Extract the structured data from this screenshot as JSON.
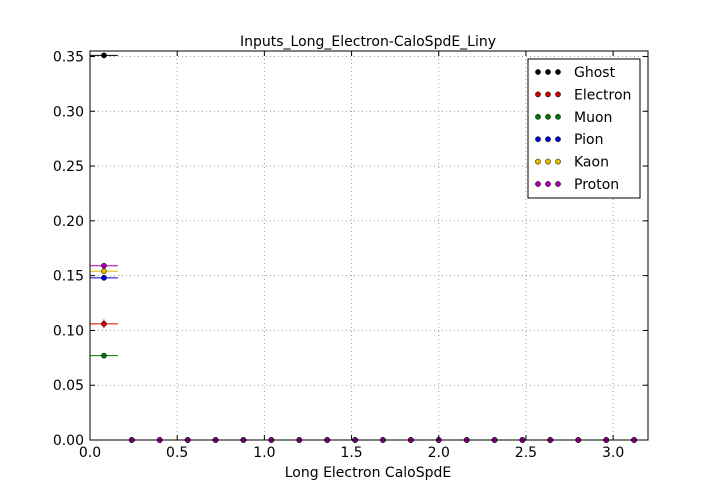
{
  "chart_data": {
    "type": "scatter",
    "title": "Inputs_Long_Electron-CaloSpdE_Liny",
    "xlabel": "Long Electron CaloSpdE",
    "ylabel": "",
    "xlim": [
      0,
      3.2
    ],
    "ylim": [
      0,
      0.355
    ],
    "xticks": [
      0.0,
      0.5,
      1.0,
      1.5,
      2.0,
      2.5,
      3.0
    ],
    "xtick_labels": [
      "0.0",
      "0.5",
      "1.0",
      "1.5",
      "2.0",
      "2.5",
      "3.0"
    ],
    "yticks": [
      0.0,
      0.05,
      0.1,
      0.15,
      0.2,
      0.25,
      0.3,
      0.35
    ],
    "ytick_labels": [
      "0.00",
      "0.05",
      "0.10",
      "0.15",
      "0.20",
      "0.25",
      "0.30",
      "0.35"
    ],
    "grid": true,
    "legend_position": "top-right",
    "x_bin_halfwidth": 0.08,
    "x": [
      0.08,
      0.24,
      0.4,
      0.56,
      0.72,
      0.88,
      1.04,
      1.2,
      1.36,
      1.52,
      1.68,
      1.84,
      2.0,
      2.16,
      2.32,
      2.48,
      2.64,
      2.8,
      2.96,
      3.12
    ],
    "series": [
      {
        "name": "Ghost",
        "color": "#000000",
        "yerr": 0.001,
        "values": [
          0.351,
          0,
          0,
          0,
          0,
          0,
          0,
          0,
          0,
          0,
          0,
          0,
          0,
          0,
          0,
          0,
          0,
          0,
          0,
          0
        ]
      },
      {
        "name": "Electron",
        "color": "#cc0000",
        "yerr": 0.004,
        "values": [
          0.106,
          0,
          0,
          0,
          0,
          0,
          0,
          0,
          0,
          0,
          0,
          0,
          0,
          0,
          0,
          0,
          0,
          0,
          0,
          0
        ]
      },
      {
        "name": "Muon",
        "color": "#007700",
        "yerr": 0.001,
        "values": [
          0.077,
          0,
          0,
          0,
          0,
          0,
          0,
          0,
          0,
          0,
          0,
          0,
          0,
          0,
          0,
          0,
          0,
          0,
          0,
          0
        ]
      },
      {
        "name": "Pion",
        "color": "#0000cc",
        "yerr": 0.001,
        "values": [
          0.148,
          0,
          0,
          0,
          0,
          0,
          0,
          0,
          0,
          0,
          0,
          0,
          0,
          0,
          0,
          0,
          0,
          0,
          0,
          0
        ]
      },
      {
        "name": "Kaon",
        "color": "#ddbb00",
        "yerr": 0.001,
        "values": [
          0.154,
          0,
          0,
          0,
          0,
          0,
          0,
          0,
          0,
          0,
          0,
          0,
          0,
          0,
          0,
          0,
          0,
          0,
          0,
          0
        ]
      },
      {
        "name": "Proton",
        "color": "#aa00aa",
        "yerr": 0.002,
        "values": [
          0.159,
          0,
          0,
          0,
          0,
          0,
          0,
          0,
          0,
          0,
          0,
          0,
          0,
          0,
          0,
          0,
          0,
          0,
          0,
          0
        ]
      }
    ]
  }
}
